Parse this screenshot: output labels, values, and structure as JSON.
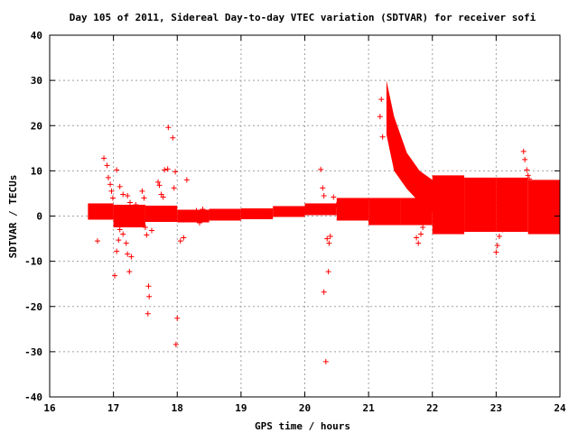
{
  "chart_data": {
    "type": "scatter",
    "title": "Day 105 of 2011, Sidereal Day-to-day VTEC variation (SDTVAR) for receiver sofi",
    "xlabel": "GPS time / hours",
    "ylabel": "SDTVAR / TECUs",
    "xlim": [
      16,
      24
    ],
    "ylim": [
      -40,
      40
    ],
    "x_ticks": [
      "16",
      "17",
      "18",
      "19",
      "20",
      "21",
      "22",
      "23",
      "24"
    ],
    "y_ticks": [
      "40",
      "30",
      "20",
      "10",
      "0",
      "-10",
      "-20",
      "-30",
      "-40"
    ],
    "grid": true,
    "marker": "+",
    "color": "#ff0000",
    "band_segments": [
      {
        "x0": 16.6,
        "x1": 17.0,
        "center": 1.0,
        "half": 1.8
      },
      {
        "x0": 17.0,
        "x1": 17.5,
        "center": 0.0,
        "half": 2.5
      },
      {
        "x0": 17.5,
        "x1": 18.0,
        "center": 0.5,
        "half": 1.8
      },
      {
        "x0": 18.0,
        "x1": 18.5,
        "center": 0.0,
        "half": 1.4
      },
      {
        "x0": 18.5,
        "x1": 19.0,
        "center": 0.3,
        "half": 1.3
      },
      {
        "x0": 19.0,
        "x1": 19.5,
        "center": 0.5,
        "half": 1.2
      },
      {
        "x0": 19.5,
        "x1": 20.0,
        "center": 1.0,
        "half": 1.2
      },
      {
        "x0": 20.0,
        "x1": 20.5,
        "center": 1.5,
        "half": 1.3
      },
      {
        "x0": 20.5,
        "x1": 21.0,
        "center": 1.5,
        "half": 2.5
      },
      {
        "x0": 21.0,
        "x1": 21.5,
        "center": 1.0,
        "half": 3.0
      },
      {
        "x0": 21.5,
        "x1": 22.0,
        "center": 1.0,
        "half": 3.0
      },
      {
        "x0": 22.0,
        "x1": 22.5,
        "center": 2.5,
        "half": 6.5
      },
      {
        "x0": 22.5,
        "x1": 23.0,
        "center": 2.5,
        "half": 6.0
      },
      {
        "x0": 23.0,
        "x1": 23.5,
        "center": 2.5,
        "half": 6.0
      },
      {
        "x0": 23.5,
        "x1": 24.0,
        "center": 2.0,
        "half": 6.0
      }
    ],
    "plume": [
      {
        "x": 21.28,
        "lo": 18,
        "hi": 30
      },
      {
        "x": 21.4,
        "lo": 10,
        "hi": 22
      },
      {
        "x": 21.6,
        "lo": 6,
        "hi": 14
      },
      {
        "x": 21.8,
        "lo": 3,
        "hi": 10
      },
      {
        "x": 22.0,
        "lo": 1,
        "hi": 8
      },
      {
        "x": 22.2,
        "lo": 0,
        "hi": 7
      }
    ],
    "points": [
      [
        16.85,
        12.8
      ],
      [
        16.9,
        11.2
      ],
      [
        16.92,
        8.5
      ],
      [
        16.95,
        7.0
      ],
      [
        16.97,
        5.5
      ],
      [
        16.99,
        4.0
      ],
      [
        16.75,
        -5.5
      ],
      [
        17.02,
        -13.2
      ],
      [
        17.05,
        -7.8
      ],
      [
        17.08,
        -5.3
      ],
      [
        17.1,
        -3.0
      ],
      [
        17.12,
        -1.5
      ],
      [
        17.15,
        -4.0
      ],
      [
        17.2,
        -6.0
      ],
      [
        17.22,
        -8.4
      ],
      [
        17.25,
        -12.3
      ],
      [
        17.28,
        -9.0
      ],
      [
        17.05,
        10.2
      ],
      [
        17.1,
        6.5
      ],
      [
        17.15,
        4.8
      ],
      [
        17.22,
        4.5
      ],
      [
        17.26,
        3.0
      ],
      [
        17.35,
        2.5
      ],
      [
        17.45,
        5.5
      ],
      [
        17.48,
        4.0
      ],
      [
        17.5,
        -2.5
      ],
      [
        17.52,
        -4.2
      ],
      [
        17.55,
        -15.5
      ],
      [
        17.56,
        -17.8
      ],
      [
        17.54,
        -21.6
      ],
      [
        17.6,
        -3.2
      ],
      [
        17.7,
        7.5
      ],
      [
        17.72,
        6.8
      ],
      [
        17.75,
        4.8
      ],
      [
        17.78,
        4.2
      ],
      [
        17.8,
        10.2
      ],
      [
        17.85,
        10.4
      ],
      [
        17.86,
        19.6
      ],
      [
        17.93,
        17.3
      ],
      [
        17.97,
        9.8
      ],
      [
        17.95,
        6.2
      ],
      [
        18.0,
        -22.6
      ],
      [
        17.98,
        -28.4
      ],
      [
        18.05,
        -5.5
      ],
      [
        18.15,
        8.0
      ],
      [
        18.1,
        -4.8
      ],
      [
        18.2,
        0.5
      ],
      [
        18.3,
        1.2
      ],
      [
        18.35,
        -1.5
      ],
      [
        18.4,
        1.5
      ],
      [
        20.25,
        10.3
      ],
      [
        20.28,
        6.2
      ],
      [
        20.3,
        4.5
      ],
      [
        20.3,
        -16.8
      ],
      [
        20.33,
        -32.2
      ],
      [
        20.37,
        -12.3
      ],
      [
        20.38,
        -6.0
      ],
      [
        20.4,
        -4.5
      ],
      [
        20.35,
        -5.0
      ],
      [
        20.45,
        4.2
      ],
      [
        20.5,
        2.5
      ],
      [
        21.22,
        17.5
      ],
      [
        21.2,
        25.8
      ],
      [
        21.18,
        22.0
      ],
      [
        20.98,
        2.5
      ],
      [
        21.75,
        -4.8
      ],
      [
        21.78,
        -6.0
      ],
      [
        21.82,
        -4.0
      ],
      [
        21.85,
        -2.5
      ],
      [
        23.0,
        -8.0
      ],
      [
        23.02,
        -6.5
      ],
      [
        23.05,
        -4.5
      ],
      [
        23.1,
        -3.0
      ],
      [
        23.43,
        14.3
      ],
      [
        23.45,
        12.5
      ],
      [
        23.48,
        10.2
      ],
      [
        23.5,
        9.0
      ],
      [
        23.52,
        8.2
      ]
    ]
  }
}
